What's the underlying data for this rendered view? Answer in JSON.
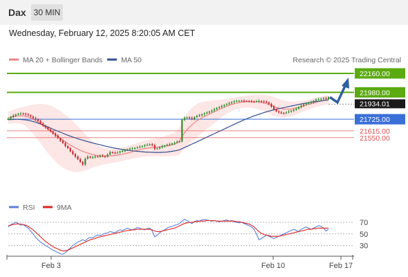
{
  "header": {
    "symbol": "Dax",
    "interval": "30 MIN",
    "datetime": "Wednesday, February 12, 2025 8:20:05 AM CET"
  },
  "legend": {
    "ma20_label": "MA 20 + Bollinger Bands",
    "ma50_label": "MA 50",
    "copyright": "Research © 2025 Trading Central",
    "rsi_label": "RSI",
    "rsi_ma_label": "9MA"
  },
  "colors": {
    "ma20": "#f08080",
    "ma50": "#2f4f8f",
    "bands": "#fde2e2",
    "resistance": "#5aaa10",
    "pivot": "#3a6fd8",
    "support": "#e05050",
    "up_candle": "#2e8b2e",
    "down_candle": "#c0282d",
    "arrow": "#2f5fa0",
    "rsi": "#5a7fd8",
    "rsi_ma": "#e02020"
  },
  "chart_data": [
    {
      "type": "candlestick",
      "title": "",
      "x_ticks": [
        "Feb 3",
        "Feb 10",
        "Feb 17"
      ],
      "current_price_label": "21934.01",
      "levels": [
        {
          "value": 22160.0,
          "label": "22160.00",
          "kind": "resistance",
          "label_style": "box"
        },
        {
          "value": 21980.0,
          "label": "21980.00",
          "kind": "resistance",
          "label_style": "box"
        },
        {
          "value": 21725.0,
          "label": "21725.00",
          "kind": "pivot",
          "label_style": "box"
        },
        {
          "value": 21615.0,
          "label": "21615.00",
          "kind": "support",
          "label_style": "text"
        },
        {
          "value": 21550.0,
          "label": "21550.00",
          "kind": "support",
          "label_style": "text"
        }
      ],
      "y_range": [
        21200,
        22180
      ],
      "arrow": {
        "from_price": 21934,
        "dip_price": 21885,
        "target_price": 22160
      },
      "closes": [
        21730,
        21745,
        21760,
        21770,
        21775,
        21780,
        21778,
        21770,
        21762,
        21750,
        21735,
        21725,
        21708,
        21685,
        21665,
        21648,
        21628,
        21610,
        21590,
        21568,
        21545,
        21520,
        21500,
        21470,
        21450,
        21420,
        21395,
        21370,
        21345,
        21320,
        21295,
        21350,
        21370,
        21360,
        21365,
        21372,
        21368,
        21380,
        21375,
        21370,
        21390,
        21412,
        21408,
        21404,
        21408,
        21420,
        21425,
        21430,
        21438,
        21445,
        21448,
        21452,
        21458,
        21464,
        21470,
        21478,
        21482,
        21488,
        21478,
        21445,
        21448,
        21458,
        21468,
        21475,
        21482,
        21488,
        21495,
        21502,
        21510,
        21515,
        21720,
        21738,
        21742,
        21736,
        21728,
        21745,
        21756,
        21762,
        21772,
        21780,
        21788,
        21798,
        21808,
        21820,
        21832,
        21840,
        21850,
        21860,
        21868,
        21878,
        21888,
        21895,
        21898,
        21900,
        21900,
        21898,
        21896,
        21895,
        21894,
        21893,
        21896,
        21898,
        21895,
        21890,
        21885,
        21870,
        21845,
        21820,
        21800,
        21790,
        21785,
        21782,
        21790,
        21798,
        21806,
        21815,
        21825,
        21840,
        21855,
        21865,
        21875,
        21880,
        21888,
        21900,
        21912,
        21915,
        21920,
        21925,
        21915,
        21934
      ],
      "ma20": [
        21740,
        21745,
        21750,
        21754,
        21757,
        21758,
        21756,
        21752,
        21745,
        21736,
        21725,
        21712,
        21698,
        21683,
        21667,
        21650,
        21632,
        21614,
        21596,
        21578,
        21560,
        21543,
        21526,
        21510,
        21495,
        21480,
        21466,
        21453,
        21441,
        21430,
        21420,
        21411,
        21403,
        21396,
        21390,
        21385,
        21381,
        21378,
        21376,
        21375,
        21375,
        21376,
        21378,
        21381,
        21384,
        21388,
        21393,
        21398,
        21404,
        21410,
        21417,
        21424,
        21430,
        21436,
        21441,
        21446,
        21450,
        21453,
        21456,
        21458,
        21460,
        21462,
        21465,
        21468,
        21472,
        21477,
        21482,
        21488,
        21500,
        21520,
        21560,
        21595,
        21625,
        21650,
        21672,
        21692,
        21710,
        21726,
        21740,
        21752,
        21763,
        21774,
        21785,
        21796,
        21807,
        21818,
        21828,
        21838,
        21848,
        21857,
        21865,
        21872,
        21878,
        21883,
        21887,
        21890,
        21892,
        21893,
        21893,
        21892,
        21890,
        21887,
        21883,
        21878,
        21872,
        21864,
        21855,
        21846,
        21838,
        21831,
        21826,
        21822,
        21820,
        21820,
        21822,
        21826,
        21831,
        21837,
        21844,
        21851,
        21858,
        21865,
        21872,
        21879,
        21886,
        21892,
        21897,
        21902,
        21906,
        21910
      ],
      "ma50": [
        21720,
        21722,
        21723,
        21724,
        21724,
        21723,
        21721,
        21718,
        21714,
        21709,
        21703,
        21696,
        21688,
        21679,
        21670,
        21661,
        21651,
        21641,
        21631,
        21621,
        21611,
        21601,
        21591,
        21582,
        21573,
        21564,
        21556,
        21548,
        21540,
        21533,
        21526,
        21519,
        21512,
        21506,
        21500,
        21494,
        21488,
        21482,
        21476,
        21470,
        21465,
        21460,
        21455,
        21450,
        21446,
        21442,
        21438,
        21434,
        21431,
        21428,
        21425,
        21422,
        21420,
        21418,
        21416,
        21414,
        21413,
        21412,
        21411,
        21410,
        21410,
        21410,
        21411,
        21412,
        21414,
        21417,
        21420,
        21424,
        21429,
        21435,
        21445,
        21456,
        21467,
        21478,
        21489,
        21500,
        21511,
        21522,
        21533,
        21544,
        21555,
        21566,
        21577,
        21588,
        21599,
        21610,
        21621,
        21632,
        21643,
        21654,
        21665,
        21676,
        21687,
        21698,
        21709,
        21719,
        21729,
        21738,
        21747,
        21756,
        21764,
        21772,
        21780,
        21788,
        21795,
        21802,
        21808,
        21814,
        21820,
        21825,
        21830,
        21835,
        21840,
        21845,
        21850,
        21855,
        21860,
        21865,
        21870,
        21874,
        21878,
        21882,
        21886,
        21890,
        21893,
        21896,
        21899,
        21902,
        21905,
        21908
      ],
      "band_width": [
        60,
        62,
        65,
        68,
        72,
        78,
        85,
        95,
        108,
        122,
        138,
        155,
        172,
        188,
        204,
        218,
        230,
        240,
        248,
        254,
        258,
        260,
        260,
        258,
        254,
        248,
        240,
        230,
        218,
        204,
        188,
        172,
        156,
        140,
        126,
        112,
        100,
        90,
        82,
        76,
        72,
        70,
        68,
        66,
        65,
        64,
        64,
        64,
        65,
        66,
        67,
        68,
        70,
        72,
        74,
        76,
        78,
        80,
        82,
        84,
        86,
        88,
        92,
        96,
        100,
        104,
        108,
        112,
        120,
        130,
        140,
        148,
        154,
        158,
        160,
        160,
        158,
        154,
        148,
        140,
        132,
        124,
        116,
        108,
        100,
        92,
        85,
        78,
        72,
        68,
        64,
        60,
        58,
        56,
        55,
        55,
        56,
        58,
        60,
        63,
        66,
        70,
        74,
        78,
        82,
        85,
        88,
        90,
        90,
        88,
        85,
        82,
        78,
        74,
        70,
        66,
        62,
        58,
        55,
        52,
        50,
        48,
        46,
        45,
        44,
        44,
        44,
        44,
        44,
        44
      ]
    },
    {
      "type": "line",
      "title": "",
      "ylim": [
        0,
        100
      ],
      "y_ticks": [
        70,
        50,
        30
      ],
      "series": [
        {
          "name": "RSI",
          "values": [
            62,
            66,
            68,
            70,
            68,
            65,
            66,
            63,
            60,
            55,
            50,
            44,
            40,
            36,
            33,
            30,
            28,
            25,
            22,
            20,
            18,
            16,
            15,
            18,
            22,
            26,
            30,
            33,
            36,
            38,
            40,
            38,
            42,
            44,
            43,
            46,
            48,
            47,
            49,
            51,
            52,
            54,
            53,
            52,
            55,
            57,
            56,
            58,
            60,
            58,
            57,
            59,
            61,
            60,
            58,
            57,
            59,
            60,
            55,
            45,
            48,
            52,
            55,
            57,
            60,
            62,
            63,
            65,
            66,
            68,
            72,
            75,
            73,
            70,
            68,
            71,
            73,
            72,
            74,
            75,
            74,
            73,
            72,
            73,
            72,
            71,
            72,
            73,
            74,
            72,
            73,
            71,
            70,
            69,
            70,
            68,
            66,
            64,
            62,
            58,
            50,
            40,
            42,
            45,
            48,
            46,
            44,
            42,
            44,
            46,
            48,
            50,
            52,
            54,
            56,
            58,
            56,
            54,
            58,
            60,
            62,
            60,
            58,
            60,
            62,
            64,
            63,
            60,
            55,
            58
          ]
        },
        {
          "name": "9MA",
          "values": [
            64,
            65,
            66,
            67,
            67,
            67,
            66,
            65,
            63,
            60,
            57,
            53,
            49,
            45,
            41,
            37,
            34,
            31,
            28,
            26,
            24,
            22,
            21,
            21,
            22,
            24,
            26,
            28,
            30,
            32,
            34,
            36,
            38,
            40,
            41,
            42,
            44,
            45,
            46,
            47,
            48,
            49,
            50,
            51,
            52,
            53,
            54,
            55,
            56,
            56,
            57,
            57,
            58,
            58,
            58,
            58,
            58,
            58,
            57,
            55,
            54,
            54,
            55,
            56,
            57,
            58,
            59,
            60,
            62,
            64,
            66,
            68,
            69,
            70,
            70,
            71,
            71,
            72,
            72,
            72,
            73,
            73,
            73,
            73,
            72,
            72,
            72,
            72,
            72,
            72,
            72,
            72,
            71,
            71,
            70,
            69,
            68,
            67,
            65,
            62,
            58,
            54,
            51,
            49,
            48,
            47,
            46,
            46,
            46,
            46,
            47,
            48,
            49,
            50,
            51,
            52,
            53,
            54,
            55,
            56,
            57,
            58,
            58,
            59,
            59,
            60,
            60,
            60,
            60,
            60
          ]
        }
      ]
    }
  ]
}
